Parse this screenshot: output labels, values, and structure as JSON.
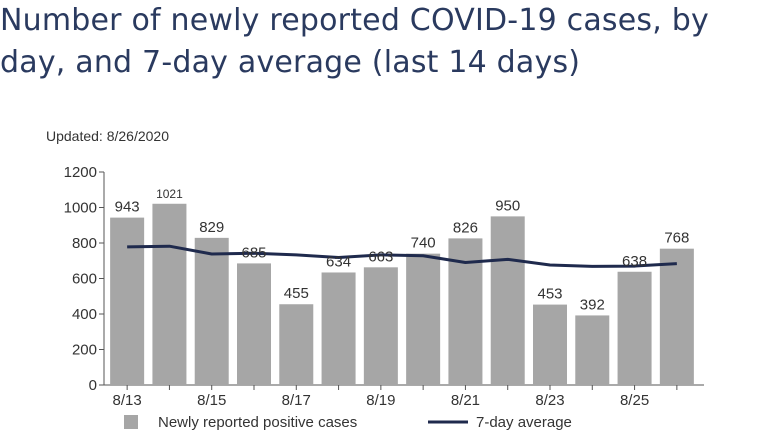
{
  "title": "Number of newly reported COVID-19 cases, by day, and 7-day average (last 14 days)",
  "updated": "Updated: 8/26/2020",
  "chart_data": {
    "type": "bar",
    "categories": [
      "8/13",
      "8/14",
      "8/15",
      "8/16",
      "8/17",
      "8/18",
      "8/19",
      "8/20",
      "8/21",
      "8/22",
      "8/23",
      "8/24",
      "8/25",
      "8/26"
    ],
    "x_tick_labels": [
      "8/13",
      "8/15",
      "8/17",
      "8/19",
      "8/21",
      "8/23",
      "8/25"
    ],
    "series": [
      {
        "name": "Newly reported positive cases",
        "type": "bar",
        "values": [
          943,
          1021,
          829,
          685,
          455,
          634,
          663,
          740,
          826,
          950,
          453,
          392,
          638,
          768
        ],
        "color": "#a6a6a6"
      },
      {
        "name": "7-day average",
        "type": "line",
        "values": [
          778,
          782,
          738,
          742,
          733,
          718,
          733,
          728,
          690,
          708,
          676,
          668,
          670,
          684
        ],
        "color": "#1f2a4d"
      }
    ],
    "ylim": [
      0,
      1200
    ],
    "y_ticks": [
      0,
      200,
      400,
      600,
      800,
      1000,
      1200
    ],
    "grid": false,
    "legend": "bottom"
  }
}
